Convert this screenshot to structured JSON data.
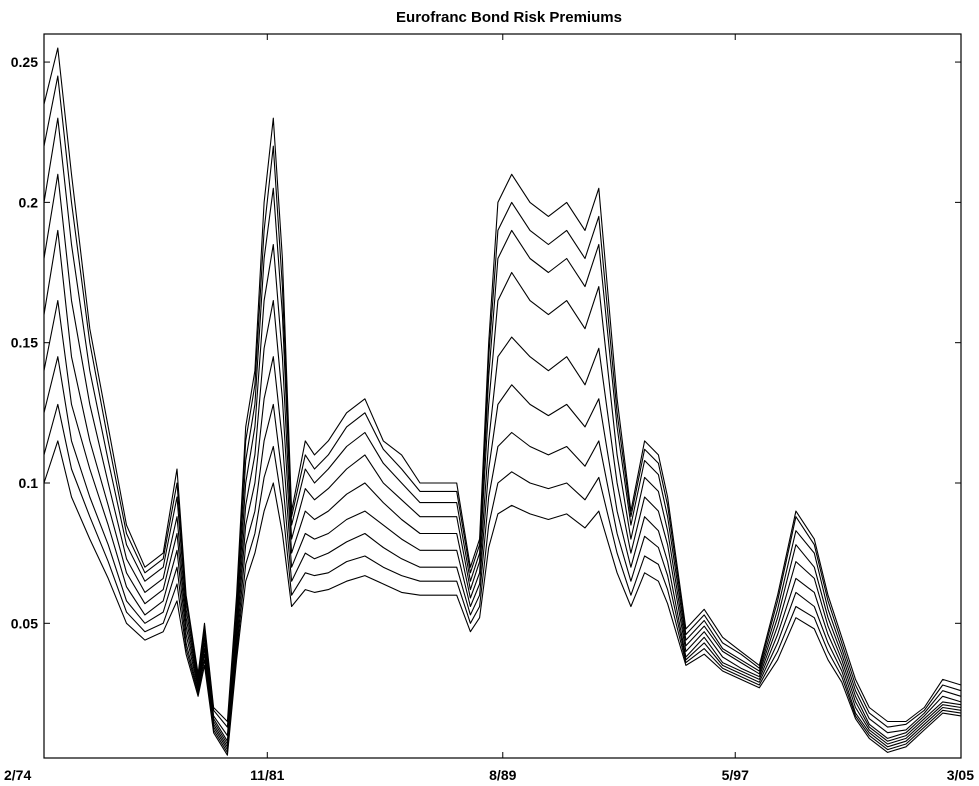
{
  "chart_data": {
    "type": "line",
    "title": "Eurofranc Bond Risk Premiums",
    "xlabel": "",
    "ylabel": "",
    "xlim": [
      0,
      100
    ],
    "ylim": [
      0.002,
      0.26
    ],
    "grid": false,
    "legend": "none",
    "x_ticks": [
      {
        "x": 0,
        "label": "2/74"
      },
      {
        "x": 24.35,
        "label": "11/81"
      },
      {
        "x": 50.03,
        "label": "8/89"
      },
      {
        "x": 75.38,
        "label": "5/97"
      },
      {
        "x": 100,
        "label": "3/05"
      }
    ],
    "y_ticks": [
      {
        "y": 0.05,
        "label": "0.05"
      },
      {
        "y": 0.1,
        "label": "0.1"
      },
      {
        "y": 0.15,
        "label": "0.15"
      },
      {
        "y": 0.2,
        "label": "0.2"
      },
      {
        "y": 0.25,
        "label": "0.25"
      }
    ],
    "x": [
      0,
      1.5,
      3,
      5,
      7,
      9,
      11,
      13,
      14.5,
      15.5,
      16.8,
      17.5,
      18.5,
      20,
      21,
      22,
      23,
      24,
      25,
      26,
      27,
      28.5,
      29.5,
      31,
      33,
      35,
      37,
      39,
      41,
      43,
      45,
      46.5,
      47.5,
      48.5,
      49.5,
      51,
      53,
      55,
      57,
      59,
      60.5,
      62.5,
      64,
      65.5,
      67,
      68,
      70,
      72,
      74,
      76,
      78,
      80,
      82,
      84,
      85.5,
      87,
      88.5,
      90,
      92,
      94,
      96,
      98,
      100
    ],
    "series": [
      {
        "values": [
          0.235,
          0.255,
          0.21,
          0.155,
          0.12,
          0.085,
          0.07,
          0.075,
          0.105,
          0.06,
          0.032,
          0.05,
          0.02,
          0.015,
          0.06,
          0.12,
          0.14,
          0.2,
          0.23,
          0.18,
          0.09,
          0.115,
          0.11,
          0.115,
          0.125,
          0.13,
          0.115,
          0.11,
          0.1,
          0.1,
          0.1,
          0.07,
          0.08,
          0.15,
          0.2,
          0.21,
          0.2,
          0.195,
          0.2,
          0.19,
          0.205,
          0.13,
          0.09,
          0.115,
          0.11,
          0.095,
          0.048,
          0.055,
          0.045,
          0.04,
          0.035,
          0.06,
          0.09,
          0.08,
          0.06,
          0.045,
          0.03,
          0.02,
          0.015,
          0.015,
          0.02,
          0.03,
          0.028
        ]
      },
      {
        "values": [
          0.22,
          0.245,
          0.2,
          0.15,
          0.115,
          0.082,
          0.068,
          0.073,
          0.1,
          0.058,
          0.031,
          0.049,
          0.019,
          0.013,
          0.057,
          0.115,
          0.135,
          0.19,
          0.22,
          0.17,
          0.088,
          0.11,
          0.105,
          0.11,
          0.12,
          0.125,
          0.112,
          0.105,
          0.097,
          0.097,
          0.097,
          0.068,
          0.078,
          0.145,
          0.19,
          0.2,
          0.19,
          0.185,
          0.19,
          0.18,
          0.195,
          0.125,
          0.088,
          0.112,
          0.107,
          0.092,
          0.046,
          0.053,
          0.043,
          0.039,
          0.034,
          0.058,
          0.088,
          0.078,
          0.058,
          0.043,
          0.028,
          0.018,
          0.013,
          0.014,
          0.019,
          0.028,
          0.026
        ]
      },
      {
        "values": [
          0.2,
          0.23,
          0.185,
          0.14,
          0.108,
          0.078,
          0.065,
          0.07,
          0.095,
          0.055,
          0.03,
          0.047,
          0.017,
          0.01,
          0.053,
          0.108,
          0.128,
          0.18,
          0.205,
          0.16,
          0.085,
          0.105,
          0.1,
          0.105,
          0.113,
          0.118,
          0.107,
          0.1,
          0.093,
          0.093,
          0.093,
          0.065,
          0.075,
          0.138,
          0.18,
          0.19,
          0.18,
          0.175,
          0.18,
          0.17,
          0.185,
          0.12,
          0.085,
          0.108,
          0.103,
          0.088,
          0.044,
          0.051,
          0.041,
          0.037,
          0.033,
          0.055,
          0.083,
          0.075,
          0.055,
          0.041,
          0.026,
          0.016,
          0.011,
          0.012,
          0.018,
          0.026,
          0.024
        ]
      },
      {
        "values": [
          0.18,
          0.21,
          0.165,
          0.128,
          0.1,
          0.073,
          0.061,
          0.066,
          0.088,
          0.052,
          0.029,
          0.045,
          0.016,
          0.008,
          0.05,
          0.1,
          0.12,
          0.165,
          0.185,
          0.145,
          0.08,
          0.098,
          0.094,
          0.098,
          0.105,
          0.11,
          0.1,
          0.094,
          0.088,
          0.088,
          0.088,
          0.062,
          0.072,
          0.128,
          0.165,
          0.175,
          0.165,
          0.16,
          0.165,
          0.155,
          0.17,
          0.11,
          0.08,
          0.102,
          0.097,
          0.083,
          0.042,
          0.049,
          0.04,
          0.036,
          0.032,
          0.052,
          0.078,
          0.07,
          0.052,
          0.039,
          0.024,
          0.014,
          0.009,
          0.011,
          0.017,
          0.024,
          0.022
        ]
      },
      {
        "values": [
          0.16,
          0.19,
          0.145,
          0.115,
          0.092,
          0.068,
          0.057,
          0.062,
          0.082,
          0.049,
          0.028,
          0.043,
          0.015,
          0.007,
          0.047,
          0.092,
          0.11,
          0.148,
          0.165,
          0.13,
          0.075,
          0.09,
          0.087,
          0.09,
          0.096,
          0.1,
          0.093,
          0.087,
          0.082,
          0.082,
          0.082,
          0.059,
          0.068,
          0.115,
          0.145,
          0.152,
          0.145,
          0.14,
          0.145,
          0.135,
          0.148,
          0.1,
          0.075,
          0.095,
          0.09,
          0.078,
          0.04,
          0.047,
          0.038,
          0.034,
          0.031,
          0.049,
          0.072,
          0.066,
          0.049,
          0.037,
          0.022,
          0.013,
          0.008,
          0.01,
          0.016,
          0.022,
          0.021
        ]
      },
      {
        "values": [
          0.14,
          0.165,
          0.128,
          0.105,
          0.085,
          0.063,
          0.053,
          0.058,
          0.076,
          0.046,
          0.027,
          0.041,
          0.014,
          0.006,
          0.044,
          0.085,
          0.1,
          0.13,
          0.145,
          0.115,
          0.07,
          0.082,
          0.08,
          0.082,
          0.087,
          0.09,
          0.085,
          0.08,
          0.076,
          0.076,
          0.076,
          0.056,
          0.064,
          0.105,
          0.128,
          0.135,
          0.128,
          0.124,
          0.128,
          0.12,
          0.13,
          0.09,
          0.07,
          0.088,
          0.083,
          0.072,
          0.038,
          0.045,
          0.036,
          0.033,
          0.03,
          0.046,
          0.066,
          0.061,
          0.046,
          0.035,
          0.02,
          0.012,
          0.007,
          0.009,
          0.015,
          0.021,
          0.02
        ]
      },
      {
        "values": [
          0.125,
          0.145,
          0.115,
          0.095,
          0.078,
          0.058,
          0.05,
          0.054,
          0.07,
          0.043,
          0.026,
          0.039,
          0.013,
          0.005,
          0.041,
          0.078,
          0.09,
          0.115,
          0.128,
          0.102,
          0.065,
          0.075,
          0.073,
          0.075,
          0.079,
          0.082,
          0.077,
          0.073,
          0.07,
          0.07,
          0.07,
          0.053,
          0.06,
          0.095,
          0.113,
          0.118,
          0.113,
          0.11,
          0.113,
          0.106,
          0.115,
          0.082,
          0.065,
          0.081,
          0.077,
          0.067,
          0.037,
          0.043,
          0.035,
          0.032,
          0.029,
          0.043,
          0.061,
          0.056,
          0.043,
          0.033,
          0.018,
          0.011,
          0.006,
          0.008,
          0.014,
          0.02,
          0.019
        ]
      },
      {
        "values": [
          0.11,
          0.128,
          0.105,
          0.088,
          0.072,
          0.054,
          0.047,
          0.05,
          0.064,
          0.041,
          0.025,
          0.037,
          0.012,
          0.004,
          0.039,
          0.071,
          0.082,
          0.102,
          0.113,
          0.092,
          0.06,
          0.068,
          0.067,
          0.068,
          0.072,
          0.074,
          0.07,
          0.067,
          0.065,
          0.065,
          0.065,
          0.05,
          0.056,
          0.085,
          0.1,
          0.104,
          0.1,
          0.098,
          0.1,
          0.094,
          0.102,
          0.075,
          0.06,
          0.074,
          0.071,
          0.062,
          0.036,
          0.041,
          0.034,
          0.031,
          0.028,
          0.04,
          0.056,
          0.052,
          0.04,
          0.031,
          0.017,
          0.01,
          0.005,
          0.007,
          0.013,
          0.019,
          0.018
        ]
      },
      {
        "values": [
          0.1,
          0.115,
          0.095,
          0.08,
          0.066,
          0.05,
          0.044,
          0.047,
          0.058,
          0.039,
          0.024,
          0.035,
          0.011,
          0.003,
          0.037,
          0.065,
          0.075,
          0.09,
          0.1,
          0.082,
          0.056,
          0.062,
          0.061,
          0.062,
          0.065,
          0.067,
          0.064,
          0.061,
          0.06,
          0.06,
          0.06,
          0.047,
          0.052,
          0.077,
          0.089,
          0.092,
          0.089,
          0.087,
          0.089,
          0.084,
          0.09,
          0.068,
          0.056,
          0.068,
          0.065,
          0.057,
          0.035,
          0.039,
          0.033,
          0.03,
          0.027,
          0.037,
          0.052,
          0.048,
          0.037,
          0.029,
          0.016,
          0.009,
          0.004,
          0.006,
          0.012,
          0.018,
          0.017
        ]
      }
    ]
  }
}
